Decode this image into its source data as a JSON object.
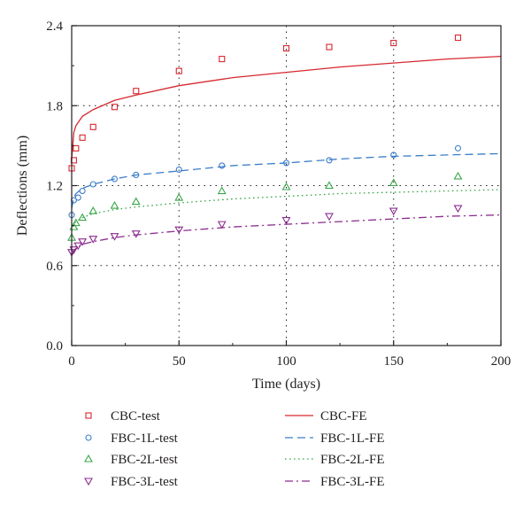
{
  "chart_data": {
    "type": "scatter",
    "xlabel": "Time (days)",
    "ylabel": "Deflections (mm)",
    "xlim": [
      0,
      200
    ],
    "ylim": [
      0,
      2.4
    ],
    "x_ticks": [
      "0",
      "50",
      "100",
      "150",
      "200"
    ],
    "y_ticks": [
      "0.0",
      "0.6",
      "1.2",
      "1.8",
      "2.4"
    ],
    "grid": "dotted",
    "legend_position": "bottom",
    "test_series": [
      {
        "name": "CBC-test",
        "marker": "square",
        "color": "#d7282f",
        "points": [
          [
            0,
            1.33
          ],
          [
            1,
            1.39
          ],
          [
            2,
            1.48
          ],
          [
            5,
            1.56
          ],
          [
            10,
            1.64
          ],
          [
            20,
            1.79
          ],
          [
            30,
            1.91
          ],
          [
            50,
            2.06
          ],
          [
            70,
            2.15
          ],
          [
            100,
            2.23
          ],
          [
            120,
            2.24
          ],
          [
            150,
            2.27
          ],
          [
            180,
            2.31
          ]
        ]
      },
      {
        "name": "FBC-1L-test",
        "marker": "circle",
        "color": "#3a7dc9",
        "points": [
          [
            0,
            0.98
          ],
          [
            1,
            1.09
          ],
          [
            3,
            1.11
          ],
          [
            5,
            1.16
          ],
          [
            10,
            1.21
          ],
          [
            20,
            1.25
          ],
          [
            30,
            1.28
          ],
          [
            50,
            1.32
          ],
          [
            70,
            1.35
          ],
          [
            100,
            1.37
          ],
          [
            120,
            1.39
          ],
          [
            150,
            1.43
          ],
          [
            180,
            1.48
          ]
        ]
      },
      {
        "name": "FBC-2L-test",
        "marker": "triangle-up",
        "color": "#3aa64a",
        "points": [
          [
            0,
            0.81
          ],
          [
            1,
            0.89
          ],
          [
            2,
            0.92
          ],
          [
            5,
            0.96
          ],
          [
            10,
            1.01
          ],
          [
            20,
            1.05
          ],
          [
            30,
            1.08
          ],
          [
            50,
            1.11
          ],
          [
            70,
            1.16
          ],
          [
            100,
            1.19
          ],
          [
            120,
            1.2
          ],
          [
            150,
            1.22
          ],
          [
            180,
            1.27
          ]
        ]
      },
      {
        "name": "FBC-3L-test",
        "marker": "triangle-down",
        "color": "#8b2c8f",
        "points": [
          [
            0,
            0.7
          ],
          [
            1,
            0.72
          ],
          [
            3,
            0.75
          ],
          [
            5,
            0.78
          ],
          [
            10,
            0.8
          ],
          [
            20,
            0.82
          ],
          [
            30,
            0.84
          ],
          [
            50,
            0.87
          ],
          [
            70,
            0.91
          ],
          [
            100,
            0.94
          ],
          [
            120,
            0.97
          ],
          [
            150,
            1.01
          ],
          [
            180,
            1.03
          ]
        ]
      }
    ],
    "fe_series": [
      {
        "name": "CBC-FE",
        "dash": "solid",
        "color": "#d7282f",
        "points": [
          [
            0,
            1.4
          ],
          [
            1,
            1.6
          ],
          [
            2,
            1.65
          ],
          [
            5,
            1.72
          ],
          [
            10,
            1.77
          ],
          [
            20,
            1.84
          ],
          [
            30,
            1.88
          ],
          [
            50,
            1.95
          ],
          [
            75,
            2.01
          ],
          [
            100,
            2.05
          ],
          [
            125,
            2.09
          ],
          [
            150,
            2.12
          ],
          [
            175,
            2.15
          ],
          [
            200,
            2.17
          ]
        ]
      },
      {
        "name": "FBC-1L-FE",
        "dash": "dashed",
        "color": "#3a7dc9",
        "points": [
          [
            0,
            1.03
          ],
          [
            1,
            1.11
          ],
          [
            2,
            1.14
          ],
          [
            5,
            1.18
          ],
          [
            10,
            1.21
          ],
          [
            20,
            1.25
          ],
          [
            30,
            1.28
          ],
          [
            50,
            1.31
          ],
          [
            75,
            1.35
          ],
          [
            100,
            1.37
          ],
          [
            125,
            1.4
          ],
          [
            150,
            1.42
          ],
          [
            175,
            1.43
          ],
          [
            200,
            1.44
          ]
        ]
      },
      {
        "name": "FBC-2L-FE",
        "dash": "dotted",
        "color": "#3aa64a",
        "points": [
          [
            0,
            0.86
          ],
          [
            1,
            0.91
          ],
          [
            2,
            0.93
          ],
          [
            5,
            0.96
          ],
          [
            10,
            0.99
          ],
          [
            20,
            1.02
          ],
          [
            30,
            1.04
          ],
          [
            50,
            1.07
          ],
          [
            75,
            1.1
          ],
          [
            100,
            1.12
          ],
          [
            125,
            1.14
          ],
          [
            150,
            1.15
          ],
          [
            175,
            1.16
          ],
          [
            200,
            1.17
          ]
        ]
      },
      {
        "name": "FBC-3L-FE",
        "dash": "dash-dot",
        "color": "#8b2c8f",
        "points": [
          [
            0,
            0.68
          ],
          [
            1,
            0.71
          ],
          [
            2,
            0.73
          ],
          [
            5,
            0.76
          ],
          [
            10,
            0.78
          ],
          [
            20,
            0.81
          ],
          [
            30,
            0.83
          ],
          [
            50,
            0.86
          ],
          [
            75,
            0.89
          ],
          [
            100,
            0.91
          ],
          [
            125,
            0.93
          ],
          [
            150,
            0.95
          ],
          [
            175,
            0.97
          ],
          [
            200,
            0.98
          ]
        ]
      }
    ]
  }
}
